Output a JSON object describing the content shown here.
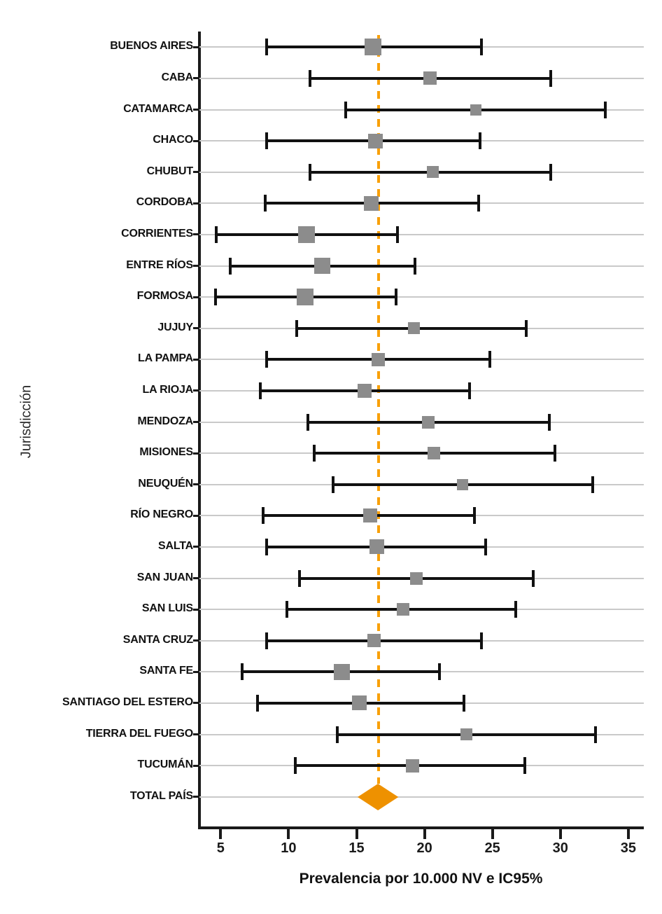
{
  "chart_data": {
    "type": "forest",
    "title": "",
    "xlabel": "Prevalencia por 10.000 NV e IC95%",
    "ylabel": "Jurisdicción",
    "x_ticks": [
      5,
      10,
      15,
      20,
      25,
      30,
      35
    ],
    "xlim": [
      3.4,
      37.3
    ],
    "grid": "horizontal",
    "marker_color": "#8c8c8c",
    "ci_color": "#111111",
    "reference_line": {
      "value": 16.6,
      "style": "dashed",
      "color": "#f9a008"
    },
    "series": [
      {
        "label": "BUENOS AIRES",
        "estimate": 16.2,
        "ci_low": 8.4,
        "ci_high": 24.2,
        "marker_size": 24
      },
      {
        "label": "CABA",
        "estimate": 20.4,
        "ci_low": 11.6,
        "ci_high": 29.3,
        "marker_size": 19
      },
      {
        "label": "CATAMARCA",
        "estimate": 23.8,
        "ci_low": 14.2,
        "ci_high": 33.3,
        "marker_size": 16
      },
      {
        "label": "CHACO",
        "estimate": 16.4,
        "ci_low": 8.4,
        "ci_high": 24.1,
        "marker_size": 21
      },
      {
        "label": "CHUBUT",
        "estimate": 20.6,
        "ci_low": 11.6,
        "ci_high": 29.3,
        "marker_size": 17
      },
      {
        "label": "CORDOBA",
        "estimate": 16.1,
        "ci_low": 8.3,
        "ci_high": 24.0,
        "marker_size": 21
      },
      {
        "label": "CORRIENTES",
        "estimate": 11.3,
        "ci_low": 4.7,
        "ci_high": 18.0,
        "marker_size": 24
      },
      {
        "label": "ENTRE RÍOS",
        "estimate": 12.5,
        "ci_low": 5.7,
        "ci_high": 19.3,
        "marker_size": 23
      },
      {
        "label": "FORMOSA",
        "estimate": 11.2,
        "ci_low": 4.6,
        "ci_high": 17.9,
        "marker_size": 24
      },
      {
        "label": "JUJUY",
        "estimate": 19.2,
        "ci_low": 10.6,
        "ci_high": 27.5,
        "marker_size": 17
      },
      {
        "label": "LA PAMPA",
        "estimate": 16.6,
        "ci_low": 8.4,
        "ci_high": 24.8,
        "marker_size": 19
      },
      {
        "label": "LA RIOJA",
        "estimate": 15.6,
        "ci_low": 7.9,
        "ci_high": 23.3,
        "marker_size": 20
      },
      {
        "label": "MENDOZA",
        "estimate": 20.3,
        "ci_low": 11.4,
        "ci_high": 29.2,
        "marker_size": 18
      },
      {
        "label": "MISIONES",
        "estimate": 20.7,
        "ci_low": 11.9,
        "ci_high": 29.6,
        "marker_size": 18
      },
      {
        "label": "NEUQUÉN",
        "estimate": 22.8,
        "ci_low": 13.3,
        "ci_high": 32.4,
        "marker_size": 16
      },
      {
        "label": "RÍO NEGRO",
        "estimate": 16.0,
        "ci_low": 8.1,
        "ci_high": 23.7,
        "marker_size": 20
      },
      {
        "label": "SALTA",
        "estimate": 16.5,
        "ci_low": 8.4,
        "ci_high": 24.5,
        "marker_size": 21
      },
      {
        "label": "SAN JUAN",
        "estimate": 19.4,
        "ci_low": 10.8,
        "ci_high": 28.0,
        "marker_size": 18
      },
      {
        "label": "SAN LUIS",
        "estimate": 18.4,
        "ci_low": 9.9,
        "ci_high": 26.7,
        "marker_size": 18
      },
      {
        "label": "SANTA CRUZ",
        "estimate": 16.3,
        "ci_low": 8.4,
        "ci_high": 24.2,
        "marker_size": 19
      },
      {
        "label": "SANTA FE",
        "estimate": 13.9,
        "ci_low": 6.6,
        "ci_high": 21.1,
        "marker_size": 23
      },
      {
        "label": "SANTIAGO DEL ESTERO",
        "estimate": 15.2,
        "ci_low": 7.7,
        "ci_high": 22.9,
        "marker_size": 21
      },
      {
        "label": "TIERRA DEL FUEGO",
        "estimate": 23.1,
        "ci_low": 13.6,
        "ci_high": 32.6,
        "marker_size": 17
      },
      {
        "label": "TUCUMÁN",
        "estimate": 19.1,
        "ci_low": 10.5,
        "ci_high": 27.4,
        "marker_size": 19
      }
    ],
    "summary": {
      "label": "TOTAL PAÍS",
      "estimate": 16.6,
      "ci_low": 15.1,
      "ci_high": 18.1,
      "marker": "diamond",
      "color": "#ee9100"
    }
  }
}
